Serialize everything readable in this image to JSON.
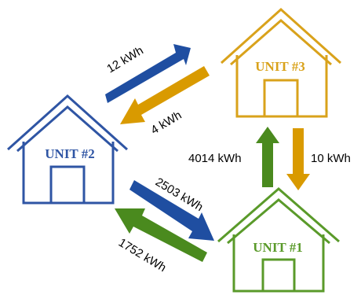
{
  "colors": {
    "blue": "#1F4EA1",
    "orange": "#D99A00",
    "green": "#4A8A1E",
    "text": "#000000"
  },
  "units": [
    {
      "id": "unit2",
      "label": "UNIT #2",
      "color": "#2F55A4"
    },
    {
      "id": "unit3",
      "label": "UNIT #3",
      "color": "#D9A21B"
    },
    {
      "id": "unit1",
      "label": "UNIT #1",
      "color": "#5A9A2A"
    }
  ],
  "flows": [
    {
      "id": "u2-to-u3",
      "label": "12 kWh",
      "color": "#1F4EA1"
    },
    {
      "id": "u3-to-u2",
      "label": "4 kWh",
      "color": "#D99A00"
    },
    {
      "id": "u1-to-u3",
      "label": "4014 kWh",
      "color": "#4A8A1E"
    },
    {
      "id": "u3-to-u1",
      "label": "10 kWh",
      "color": "#D99A00"
    },
    {
      "id": "u2-to-u1",
      "label": "2503 kWh",
      "color": "#1F4EA1"
    },
    {
      "id": "u1-to-u2",
      "label": "1752 kWh",
      "color": "#4A8A1E"
    }
  ]
}
